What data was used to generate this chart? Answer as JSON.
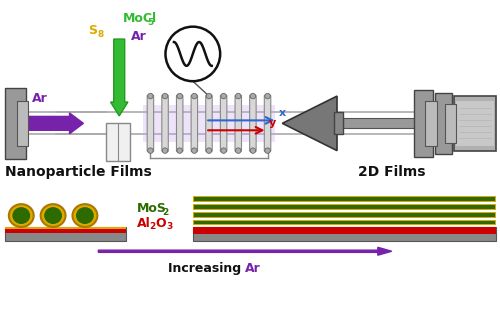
{
  "bg_color": "#ffffff",
  "colors": {
    "green_arrow": "#33bb33",
    "purple_arrow": "#7722aa",
    "MoCl5_color": "#33bb33",
    "S8_color": "#ddaa00",
    "Ar_color": "#7722aa",
    "red": "#cc0000",
    "dark_green": "#2d6a00",
    "yellow_gold": "#ddaa00",
    "gray": "#888888",
    "dark_gray": "#555555",
    "mid_gray": "#aaaaaa",
    "light_gray": "#cccccc",
    "blue": "#3366cc",
    "plasma_purple": "#c8a8f0",
    "x_color": "#3366cc",
    "y_color": "#cc0000",
    "black": "#111111",
    "coil_gray": "#c0c0c0",
    "tube_gray": "#b0b0b0"
  },
  "layout": {
    "xlim": [
      0,
      10
    ],
    "ylim": [
      0,
      6.56
    ],
    "tube_y": 4.1,
    "tube_height": 0.22,
    "coil_xstart": 2.85,
    "coil_xend": 5.5,
    "n_coils": 9,
    "rf_x": 3.85,
    "rf_y": 5.5,
    "rf_r": 0.55
  }
}
